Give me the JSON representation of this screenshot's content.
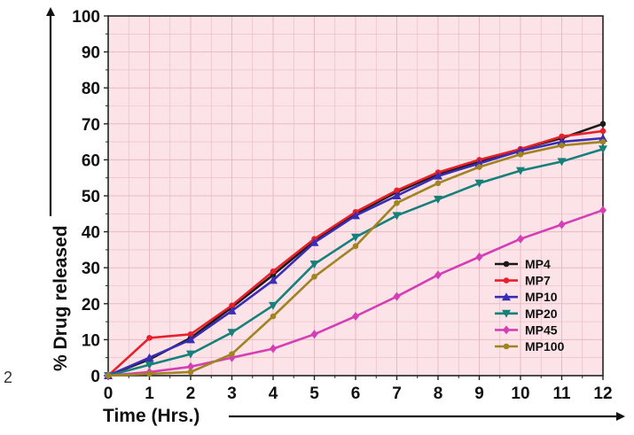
{
  "stray_text": "2",
  "chart_data": {
    "type": "line",
    "title": "",
    "xlabel": "Time (Hrs.)",
    "ylabel": "% Drug released",
    "xlim": [
      0,
      12
    ],
    "ylim": [
      0,
      100
    ],
    "x_ticks": [
      "0",
      "1",
      "2",
      "3",
      "4",
      "5",
      "6",
      "7",
      "8",
      "9",
      "10",
      "11",
      "12"
    ],
    "y_ticks": [
      "0",
      "10",
      "20",
      "30",
      "40",
      "50",
      "60",
      "70",
      "80",
      "90",
      "100"
    ],
    "grid": true,
    "background_color": "#fbe3e8",
    "grid_color": "#e9b9c4",
    "legend_position": "bottom-right",
    "x": [
      0,
      1,
      2,
      3,
      4,
      5,
      6,
      7,
      8,
      9,
      10,
      11,
      12
    ],
    "series": [
      {
        "name": "MP4",
        "color": "#1a1a1a",
        "marker": "circle",
        "values": [
          0,
          4.5,
          10.5,
          19,
          28,
          37.5,
          45,
          51,
          56,
          59.5,
          63,
          66,
          70
        ]
      },
      {
        "name": "MP7",
        "color": "#e8202a",
        "marker": "circle",
        "values": [
          0,
          10.5,
          11.5,
          19.5,
          29,
          38,
          45.5,
          51.5,
          56.5,
          60,
          63,
          66.5,
          68
        ]
      },
      {
        "name": "MP10",
        "color": "#3a2cb5",
        "marker": "triangle-up",
        "values": [
          0,
          5,
          10,
          18,
          26.5,
          37,
          44.5,
          50,
          55.5,
          59,
          62.5,
          65,
          66
        ]
      },
      {
        "name": "MP20",
        "color": "#17807a",
        "marker": "triangle-down",
        "values": [
          0,
          3,
          6,
          12,
          19.5,
          31,
          38.5,
          44.5,
          49,
          53.5,
          57,
          59.5,
          63
        ]
      },
      {
        "name": "MP45",
        "color": "#d43fb5",
        "marker": "diamond",
        "values": [
          0,
          1,
          2.5,
          5,
          7.5,
          11.5,
          16.5,
          22,
          28,
          33,
          38,
          42,
          46
        ]
      },
      {
        "name": "MP100",
        "color": "#a08420",
        "marker": "circle",
        "values": [
          0,
          0.5,
          1,
          6,
          16.5,
          27.5,
          36,
          48,
          53.5,
          58,
          61.5,
          64,
          65
        ]
      }
    ]
  }
}
